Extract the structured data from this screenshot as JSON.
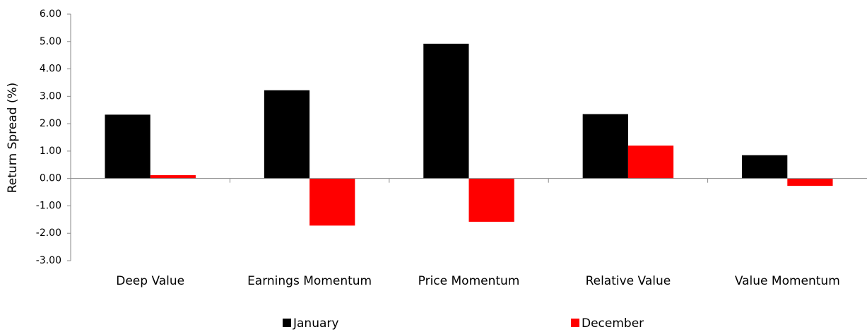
{
  "chart_data": {
    "type": "bar",
    "y_label": "Return Spread (%)",
    "categories": [
      "Deep Value",
      "Earnings Momentum",
      "Price Momentum",
      "Relative Value",
      "Value Momentum"
    ],
    "series": [
      {
        "name": "January",
        "color": "#000000",
        "values": [
          2.33,
          3.22,
          4.92,
          2.35,
          0.85
        ]
      },
      {
        "name": "December",
        "color": "#ff0000",
        "values": [
          0.12,
          -1.72,
          -1.58,
          1.2,
          -0.27
        ]
      }
    ],
    "ylim": [
      -3,
      6
    ],
    "yticks": [
      {
        "value": -3,
        "label": "-3.00"
      },
      {
        "value": -2,
        "label": "-2.00"
      },
      {
        "value": -1,
        "label": "-1.00"
      },
      {
        "value": 0,
        "label": "0.00"
      },
      {
        "value": 1,
        "label": "1.00"
      },
      {
        "value": 2,
        "label": "2.00"
      },
      {
        "value": 3,
        "label": "3.00"
      },
      {
        "value": 4,
        "label": "4.00"
      },
      {
        "value": 5,
        "label": "5.00"
      },
      {
        "value": 6,
        "label": "6.00"
      }
    ],
    "legend": "bottom"
  }
}
